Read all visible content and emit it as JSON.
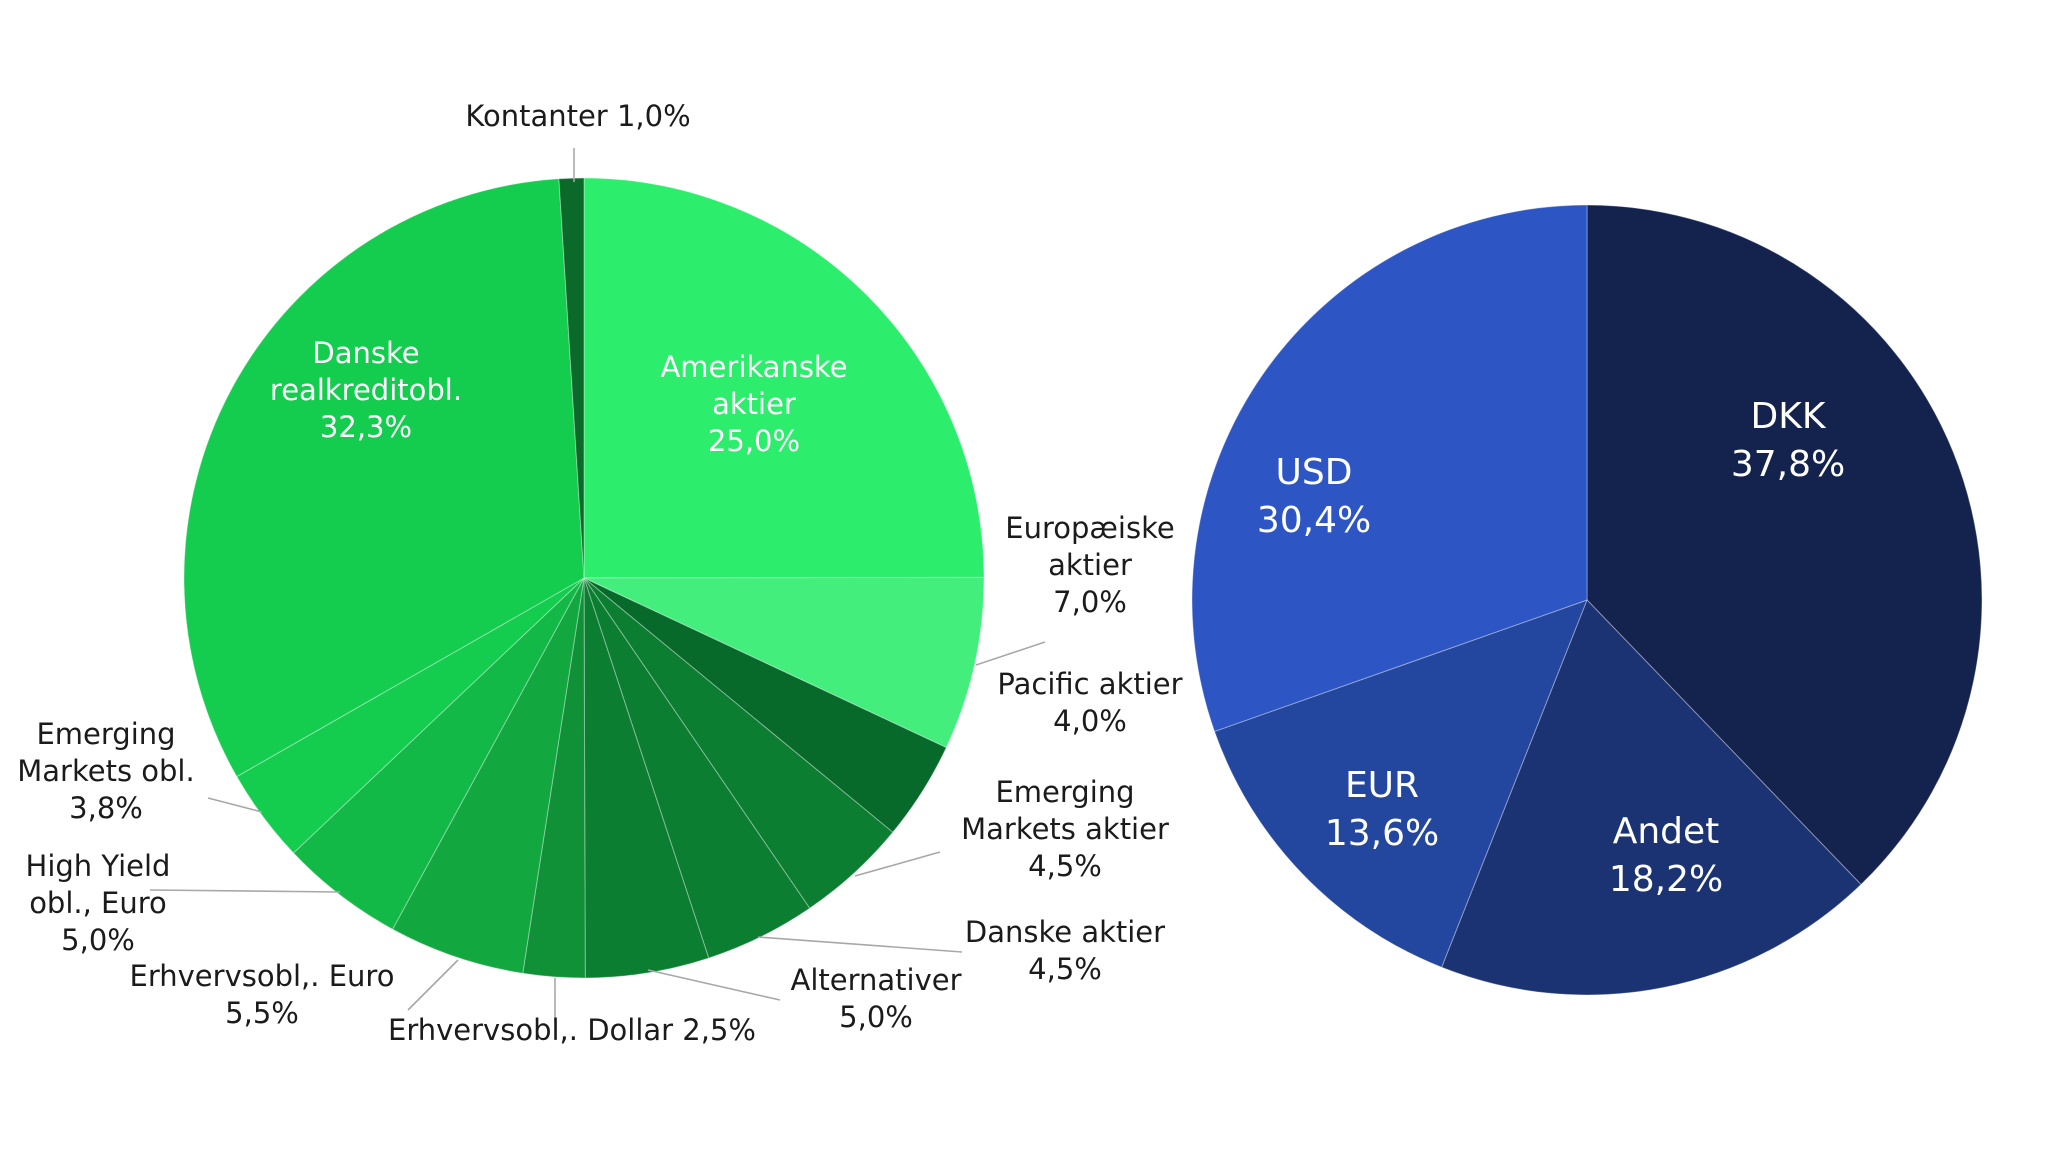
{
  "chart_data": [
    {
      "type": "pie",
      "title": "",
      "slices": [
        {
          "lines": [
            "Amerikanske",
            "aktier",
            "25,0%"
          ],
          "value": 25.0,
          "color": "#2ded6c",
          "label_inside": true
        },
        {
          "lines": [
            "Europæiske",
            "aktier",
            "7,0%"
          ],
          "value": 7.0,
          "color": "#44ee7c",
          "label_inside": false
        },
        {
          "lines": [
            "Pacific aktier",
            "4,0%"
          ],
          "value": 4.0,
          "color": "#086a2a",
          "label_inside": false
        },
        {
          "lines": [
            "Emerging",
            "Markets aktier",
            "4,5%"
          ],
          "value": 4.5,
          "color": "#0c7e32",
          "label_inside": false
        },
        {
          "lines": [
            "Danske aktier",
            "4,5%"
          ],
          "value": 4.5,
          "color": "#0c7e32",
          "label_inside": false
        },
        {
          "lines": [
            "Alternativer",
            "5,0%"
          ],
          "value": 5.0,
          "color": "#0c7e32",
          "label_inside": false
        },
        {
          "lines": [
            "Erhvervsobl,. Dollar 2,5%"
          ],
          "value": 2.5,
          "color": "#119137",
          "label_inside": false
        },
        {
          "lines": [
            "Erhvervsobl,. Euro",
            "5,5%"
          ],
          "value": 5.5,
          "color": "#12a83f",
          "label_inside": false
        },
        {
          "lines": [
            "High Yield",
            "obl., Euro",
            "5,0%"
          ],
          "value": 5.0,
          "color": "#13b946",
          "label_inside": false
        },
        {
          "lines": [
            "Emerging",
            "Markets obl.",
            "3,8%"
          ],
          "value": 3.8,
          "color": "#14cd4e",
          "label_inside": false
        },
        {
          "lines": [
            "Danske",
            "realkreditobl.",
            "32,3%"
          ],
          "value": 32.3,
          "color": "#14cd4e",
          "label_inside": true
        },
        {
          "lines": [
            "Kontanter 1,0%"
          ],
          "value": 1.0,
          "color": "#0b6a29",
          "label_inside": false
        }
      ]
    },
    {
      "type": "pie",
      "title": "",
      "slices": [
        {
          "lines": [
            "DKK",
            "37,8%"
          ],
          "value": 37.8,
          "color": "#14224e",
          "label_inside": true
        },
        {
          "lines": [
            "Andet",
            "18,2%"
          ],
          "value": 18.2,
          "color": "#1b3373",
          "label_inside": true
        },
        {
          "lines": [
            "EUR",
            "13,6%"
          ],
          "value": 13.6,
          "color": "#23469e",
          "label_inside": true
        },
        {
          "lines": [
            "USD",
            "30,4%"
          ],
          "value": 30.4,
          "color": "#2d56c4",
          "label_inside": true
        }
      ]
    }
  ]
}
